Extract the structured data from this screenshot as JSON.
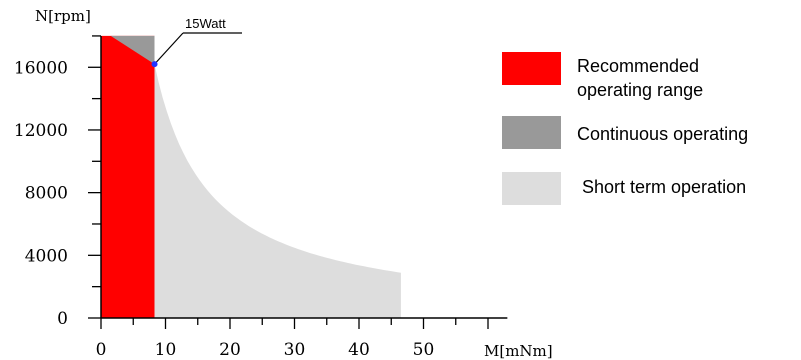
{
  "chart_data": {
    "type": "area",
    "xlabel": "M[mNm]",
    "ylabel": "N[rpm]",
    "xlim": [
      0,
      63
    ],
    "ylim": [
      0,
      18000
    ],
    "x_ticks": [
      0,
      10,
      20,
      30,
      40,
      50
    ],
    "y_ticks": [
      0,
      4000,
      8000,
      12000,
      16000
    ],
    "grid": false,
    "annotation": {
      "text": "15Watt",
      "point": [
        8.3,
        16200
      ]
    },
    "regions": [
      {
        "name": "Recommended operating range",
        "color": "#ff0000",
        "points": [
          [
            0,
            0
          ],
          [
            8.3,
            0
          ],
          [
            8.3,
            16200
          ],
          [
            8.3,
            18000
          ],
          [
            0,
            18000
          ]
        ]
      },
      {
        "name": "Continuous operating",
        "color": "#999999",
        "points": [
          [
            1.5,
            18000
          ],
          [
            8.3,
            18000
          ],
          [
            8.3,
            16200
          ]
        ]
      },
      {
        "name": "Short term operation",
        "color": "#dddddd",
        "curve": "power_limit",
        "power_const": 134460,
        "x_range": [
          8.3,
          46.5
        ],
        "floor_y": 0
      }
    ],
    "legend": {
      "placement": "right",
      "entries": [
        {
          "lines": [
            "Recommended",
            "operating range"
          ],
          "color": "#ff0000"
        },
        {
          "lines": [
            "Continuous operating"
          ],
          "color": "#999999"
        },
        {
          "lines": [
            " Short term operation"
          ],
          "color": "#dddddd"
        }
      ]
    }
  }
}
